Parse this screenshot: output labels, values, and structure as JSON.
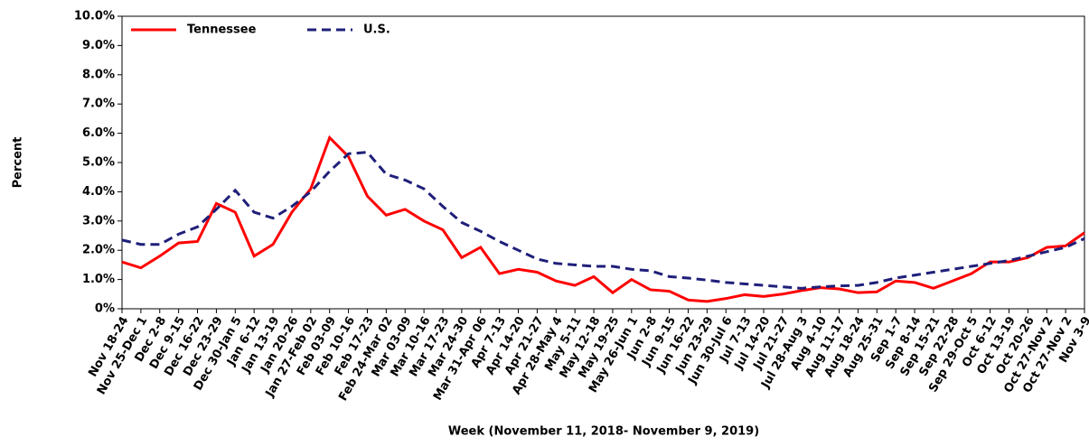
{
  "chart_data": {
    "type": "line",
    "x_label": "Week (November 11, 2018- November 9, 2019)",
    "y_label": "Percent",
    "categories": [
      "Nov 18-24",
      "Nov 25-Dec 1",
      "Dec 2-8",
      "Dec 9-15",
      "Dec 16-22",
      "Dec 23-29",
      "Dec 30-Jan 5",
      "Jan 6-12",
      "Jan 13-19",
      "Jan 20-26",
      "Jan 27-Feb 02",
      "Feb 03-09",
      "Feb 10-16",
      "Feb 17-23",
      "Feb 24-Mar 02",
      "Mar 03-09",
      "Mar 10-16",
      "Mar 17-23",
      "Mar 24-30",
      "Mar 31-Apr 06",
      "Apr 7-13",
      "Apr 14-20",
      "Apr 21-27",
      "Apr 28-May 4",
      "May 5-11",
      "May 12-18",
      "May 19-25",
      "May 26-Jun 1",
      "Jun 2-8",
      "Jun 9-15",
      "Jun 16-22",
      "Jun 23-29",
      "Jun 30-Jul 6",
      "Jul 7-13",
      "Jul 14-20",
      "Jul 21-27",
      "Jul 28-Aug 3",
      "Aug 4-10",
      "Aug 11-17",
      "Aug 18-24",
      "Aug 25-31",
      "Sep 1-7",
      "Sep 8-14",
      "Sep 15-21",
      "Sep 22-28",
      "Sep 29-Oct 5",
      "Oct 6-12",
      "Oct 13-19",
      "Oct 20-26",
      "Oct 27-Nov 2",
      "Oct 27-Nov 2",
      "Nov 3-9"
    ],
    "series": [
      {
        "name": "Tennessee",
        "color": "#ff0000",
        "dash": false,
        "values": [
          1.6,
          1.4,
          1.8,
          2.25,
          2.3,
          3.6,
          3.3,
          1.8,
          2.2,
          3.3,
          4.1,
          5.85,
          5.2,
          3.85,
          3.2,
          3.4,
          3.0,
          2.7,
          1.75,
          2.1,
          1.2,
          1.35,
          1.25,
          0.95,
          0.8,
          1.1,
          0.55,
          1.0,
          0.65,
          0.6,
          0.3,
          0.25,
          0.35,
          0.48,
          0.42,
          0.5,
          0.62,
          0.72,
          0.68,
          0.55,
          0.58,
          0.95,
          0.9,
          0.7,
          0.95,
          1.2,
          1.6,
          1.6,
          1.75,
          2.1,
          2.15,
          2.6
        ]
      },
      {
        "name": "U.S.",
        "color": "#1f1f7a",
        "dash": true,
        "values": [
          2.35,
          2.2,
          2.2,
          2.55,
          2.8,
          3.4,
          4.05,
          3.3,
          3.1,
          3.5,
          4.0,
          4.7,
          5.3,
          5.35,
          4.6,
          4.4,
          4.1,
          3.5,
          2.95,
          2.65,
          2.3,
          2.0,
          1.7,
          1.55,
          1.5,
          1.45,
          1.45,
          1.35,
          1.3,
          1.1,
          1.05,
          0.98,
          0.9,
          0.85,
          0.8,
          0.75,
          0.7,
          0.75,
          0.78,
          0.8,
          0.9,
          1.05,
          1.15,
          1.25,
          1.35,
          1.45,
          1.55,
          1.65,
          1.8,
          1.95,
          2.1,
          2.4
        ]
      }
    ],
    "ylim": [
      0,
      10
    ],
    "yticks": [
      {
        "value": 0,
        "label": "0%"
      },
      {
        "value": 1,
        "label": "1.0%"
      },
      {
        "value": 2,
        "label": "2.0%"
      },
      {
        "value": 3,
        "label": "3.0%"
      },
      {
        "value": 4,
        "label": "4.0%"
      },
      {
        "value": 5,
        "label": "5.0%"
      },
      {
        "value": 6,
        "label": "6.0%"
      },
      {
        "value": 7,
        "label": "7.0%"
      },
      {
        "value": 8,
        "label": "8.0%"
      },
      {
        "value": 9,
        "label": "9.0%"
      },
      {
        "value": 10,
        "label": "10.0%"
      }
    ],
    "legend": "upper left"
  }
}
